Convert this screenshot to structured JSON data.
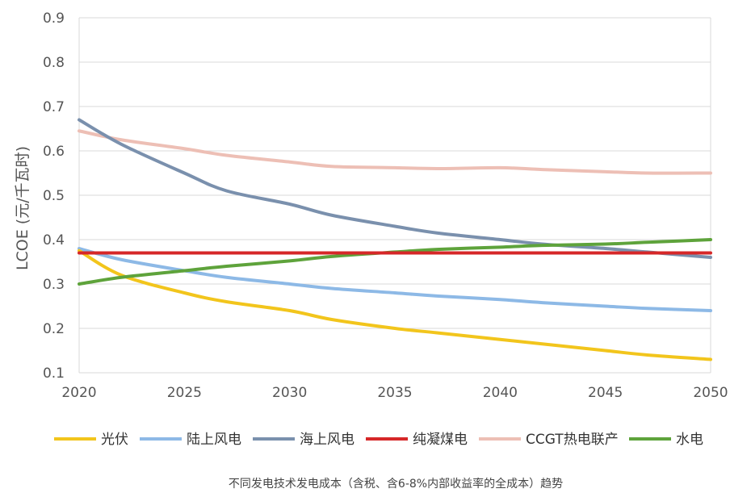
{
  "chart_data": {
    "type": "line",
    "title": "",
    "xlabel": "",
    "ylabel": "LCOE (元/千瓦时)",
    "xlim": [
      2020,
      2050
    ],
    "ylim": [
      0.1,
      0.9
    ],
    "x_ticks": [
      2020,
      2025,
      2030,
      2035,
      2040,
      2045,
      2050
    ],
    "y_ticks": [
      0.1,
      0.2,
      0.3,
      0.4,
      0.5,
      0.6,
      0.7,
      0.8,
      0.9
    ],
    "grid": "horizontal",
    "legend_position": "bottom",
    "caption": "不同发电技术发电成本（含税、含6-8%内部收益率的全成本）趋势",
    "x": [
      2020,
      2022,
      2025,
      2027,
      2030,
      2032,
      2035,
      2037,
      2040,
      2042,
      2045,
      2047,
      2050
    ],
    "series": [
      {
        "name": "光伏",
        "color": "#F2C51C",
        "values": [
          0.375,
          0.32,
          0.28,
          0.26,
          0.24,
          0.22,
          0.2,
          0.19,
          0.175,
          0.165,
          0.15,
          0.14,
          0.13
        ]
      },
      {
        "name": "陆上风电",
        "color": "#8DB9E6",
        "values": [
          0.38,
          0.355,
          0.33,
          0.315,
          0.3,
          0.29,
          0.28,
          0.273,
          0.265,
          0.258,
          0.25,
          0.245,
          0.24
        ]
      },
      {
        "name": "海上风电",
        "color": "#7A90AD",
        "values": [
          0.67,
          0.615,
          0.55,
          0.51,
          0.48,
          0.455,
          0.43,
          0.415,
          0.4,
          0.39,
          0.38,
          0.372,
          0.36
        ]
      },
      {
        "name": "纯凝煤电",
        "color": "#D62728",
        "values": [
          0.37,
          0.37,
          0.37,
          0.37,
          0.37,
          0.37,
          0.37,
          0.37,
          0.37,
          0.37,
          0.37,
          0.37,
          0.37
        ]
      },
      {
        "name": "CCGT热电联产",
        "color": "#EDBFB5",
        "values": [
          0.645,
          0.625,
          0.605,
          0.59,
          0.575,
          0.565,
          0.562,
          0.56,
          0.562,
          0.558,
          0.553,
          0.55,
          0.55
        ]
      },
      {
        "name": "水电",
        "color": "#5EA33B",
        "values": [
          0.3,
          0.315,
          0.33,
          0.34,
          0.352,
          0.362,
          0.372,
          0.378,
          0.383,
          0.387,
          0.39,
          0.394,
          0.4
        ]
      }
    ]
  }
}
